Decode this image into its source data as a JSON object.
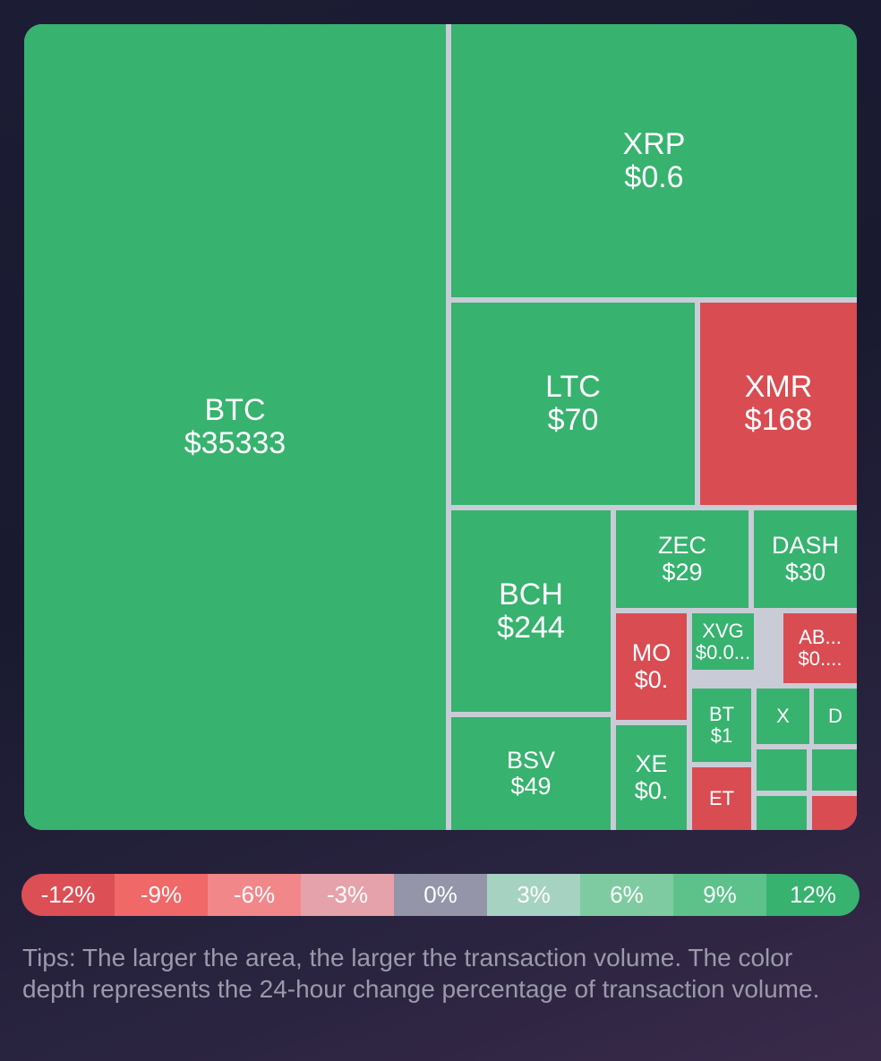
{
  "colors": {
    "up": "#37b26f",
    "down": "#d94c52",
    "gap": "#c9ccd6"
  },
  "chart_data": {
    "type": "treemap",
    "tiles": [
      {
        "symbol": "BTC",
        "price": "$35333",
        "trend": "up"
      },
      {
        "symbol": "XRP",
        "price": "$0.6",
        "trend": "up"
      },
      {
        "symbol": "LTC",
        "price": "$70",
        "trend": "up"
      },
      {
        "symbol": "XMR",
        "price": "$168",
        "trend": "down"
      },
      {
        "symbol": "BCH",
        "price": "$244",
        "trend": "up"
      },
      {
        "symbol": "ZEC",
        "price": "$29",
        "trend": "up"
      },
      {
        "symbol": "DASH",
        "price": "$30",
        "trend": "up"
      },
      {
        "symbol": "MO",
        "price": "$0.",
        "trend": "down"
      },
      {
        "symbol": "XVG",
        "price": "$0.0...",
        "trend": "up"
      },
      {
        "symbol": "AB...",
        "price": "$0....",
        "trend": "down"
      },
      {
        "symbol": "BT",
        "price": "$1",
        "trend": "up"
      },
      {
        "symbol": "X",
        "price": "",
        "trend": "up"
      },
      {
        "symbol": "D",
        "price": "",
        "trend": "up"
      },
      {
        "symbol": "BSV",
        "price": "$49",
        "trend": "up"
      },
      {
        "symbol": "XE",
        "price": "$0.",
        "trend": "up"
      },
      {
        "symbol": "ET",
        "price": "",
        "trend": "down"
      },
      {
        "symbol": "",
        "price": "",
        "trend": "up"
      },
      {
        "symbol": "",
        "price": "",
        "trend": "up"
      },
      {
        "symbol": "",
        "price": "",
        "trend": "up"
      },
      {
        "symbol": "",
        "price": "",
        "trend": "down"
      }
    ]
  },
  "legend": {
    "labels": [
      "-12%",
      "-9%",
      "-6%",
      "-3%",
      "0%",
      "3%",
      "6%",
      "9%",
      "12%"
    ],
    "colors": [
      "#dc4f55",
      "#f06868",
      "#f2878a",
      "#e6a2aa",
      "#9495a8",
      "#a6d3c1",
      "#7fcba1",
      "#5cc28a",
      "#37b26f"
    ]
  },
  "tips": "Tips: The larger the area, the larger the transaction volume. The color depth represents the 24-hour change percentage of transaction volume."
}
